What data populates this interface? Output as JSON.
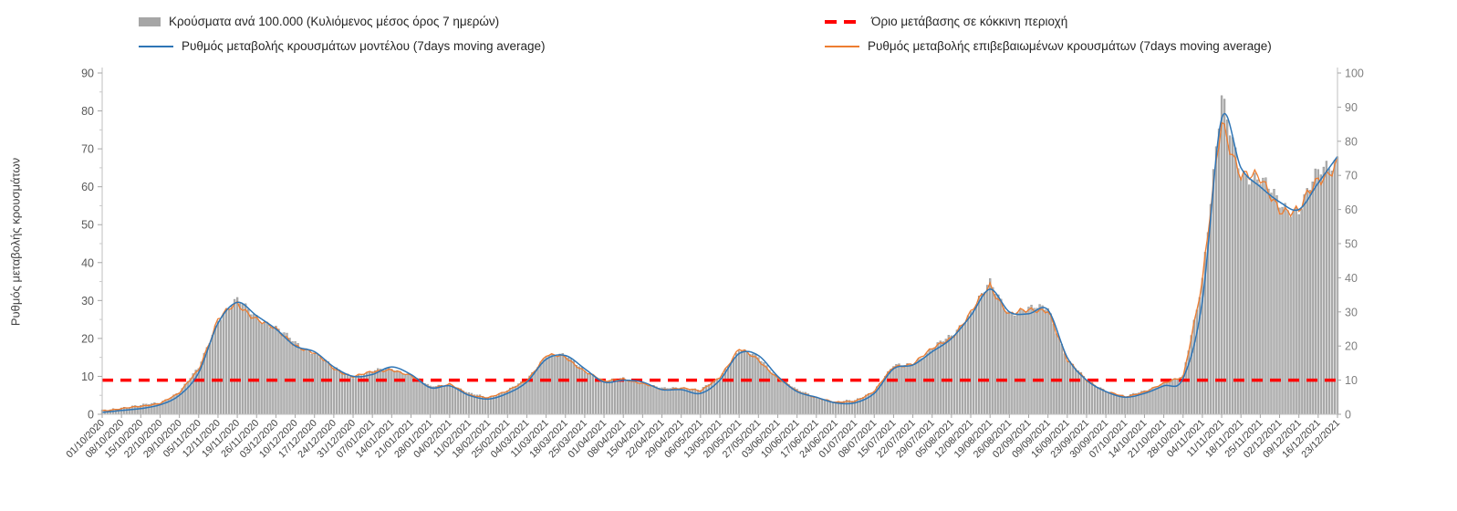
{
  "chart_data": {
    "type": "bar+line",
    "ylabel": "Ρυθμός μεταβολής κρουσμάτων",
    "left_axis": {
      "min": 0,
      "max": 90,
      "ticks": [
        0,
        10,
        20,
        30,
        40,
        50,
        60,
        70,
        80,
        90
      ]
    },
    "right_axis": {
      "min": 0,
      "max": 100,
      "ticks": [
        0,
        10,
        20,
        30,
        40,
        50,
        60,
        70,
        80,
        90,
        100
      ]
    },
    "threshold": {
      "label": "Όριο μετάβασης σε κόκκινη περιοχή",
      "value": 10,
      "axis": "right",
      "color": "#ff0000"
    },
    "x": [
      "01/10/2020",
      "08/10/2020",
      "15/10/2020",
      "22/10/2020",
      "29/10/2020",
      "05/11/2020",
      "12/11/2020",
      "19/11/2020",
      "26/11/2020",
      "03/12/2020",
      "10/12/2020",
      "17/12/2020",
      "24/12/2020",
      "31/12/2020",
      "07/01/2021",
      "14/01/2021",
      "21/01/2021",
      "28/01/2021",
      "04/02/2021",
      "11/02/2021",
      "18/02/2021",
      "25/02/2021",
      "04/03/2021",
      "11/03/2021",
      "18/03/2021",
      "25/03/2021",
      "01/04/2021",
      "08/04/2021",
      "15/04/2021",
      "22/04/2021",
      "29/04/2021",
      "06/05/2021",
      "13/05/2021",
      "20/05/2021",
      "27/05/2021",
      "03/06/2021",
      "10/06/2021",
      "17/06/2021",
      "24/06/2021",
      "01/07/2021",
      "08/07/2021",
      "15/07/2021",
      "22/07/2021",
      "29/07/2021",
      "05/08/2021",
      "12/08/2021",
      "19/08/2021",
      "26/08/2021",
      "02/09/2021",
      "09/09/2021",
      "16/09/2021",
      "23/09/2021",
      "30/09/2021",
      "07/10/2021",
      "14/10/2021",
      "21/10/2021",
      "28/10/2021",
      "04/11/2021",
      "11/11/2021",
      "18/11/2021",
      "25/11/2021",
      "02/12/2021",
      "09/12/2021",
      "16/12/2021",
      "23/12/2021"
    ],
    "series": [
      {
        "name": "Κρούσματα ανά 100.000 (Κυλιόμενος μέσος όρος 7 ημερών)",
        "type": "bar",
        "axis": "right",
        "color": "#b0b0b0",
        "values": [
          1,
          2,
          2.5,
          3.5,
          6.5,
          13.5,
          28,
          33,
          29,
          25,
          21,
          18,
          13.5,
          11,
          12.5,
          13.5,
          11.5,
          8,
          9,
          6,
          5,
          7,
          10,
          17.5,
          17,
          13,
          9.5,
          10.5,
          9,
          7.5,
          8,
          7,
          11,
          19,
          16.5,
          11,
          7,
          5,
          3.5,
          4,
          7,
          14,
          15,
          19,
          23,
          30,
          38,
          30,
          30.5,
          31.5,
          16,
          10,
          7,
          5,
          7,
          9,
          11,
          40,
          91,
          72,
          68,
          62,
          60,
          70,
          76
        ]
      },
      {
        "name": "Ρυθμός μεταβολής κρουσμάτων μοντέλου (7days moving average)",
        "type": "line",
        "axis": "left",
        "color": "#2e75b6",
        "values": [
          0.5,
          1,
          1.5,
          2.5,
          5,
          11,
          24,
          29.5,
          26,
          22.5,
          18,
          16.5,
          12.5,
          10,
          10.5,
          12.5,
          10.5,
          7,
          7.5,
          5,
          4,
          5.5,
          8.5,
          14.5,
          15.5,
          12,
          8.5,
          9,
          8.5,
          6.5,
          6.5,
          5.5,
          9,
          16,
          15.5,
          10,
          6,
          4.5,
          3,
          3,
          5.5,
          12,
          13,
          16.5,
          20,
          26,
          33,
          27,
          26.5,
          27.5,
          15,
          9,
          6,
          4.5,
          5.5,
          7.5,
          9.5,
          30,
          78,
          65,
          60,
          56,
          54,
          61,
          68
        ]
      },
      {
        "name": "Ρυθμός μεταβολής επιβεβαιωμένων κρουσμάτων (7days moving average)",
        "type": "line",
        "axis": "left",
        "color": "#ed7d31",
        "values": [
          1,
          1.5,
          2,
          3,
          5.5,
          12,
          25,
          29,
          25.5,
          22,
          18.5,
          16,
          12,
          10,
          11,
          12,
          10,
          7,
          8,
          5,
          4.5,
          6,
          9,
          15.5,
          15,
          11.5,
          8.5,
          9.5,
          8,
          6.5,
          7,
          6,
          10,
          17,
          14.5,
          9.5,
          6,
          4.5,
          3,
          3.5,
          6,
          12.5,
          13.5,
          17,
          20.5,
          26.5,
          34,
          26.5,
          27,
          28,
          14,
          9,
          6,
          4.5,
          6,
          8,
          10,
          35,
          77,
          64,
          61,
          55,
          53,
          62,
          67
        ]
      }
    ]
  }
}
